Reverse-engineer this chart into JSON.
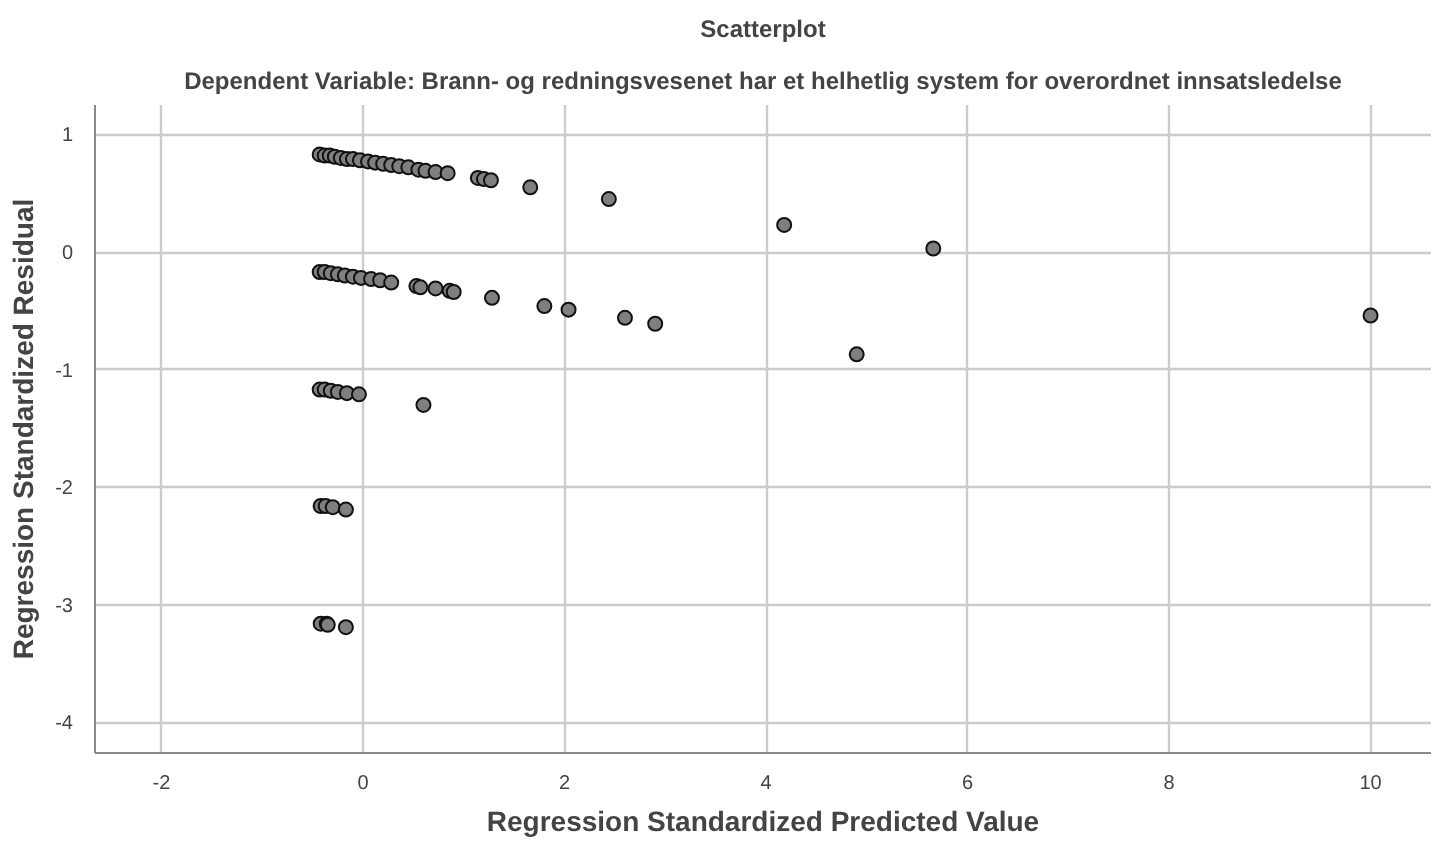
{
  "chart_data": {
    "type": "scatter",
    "title": "Scatterplot",
    "subtitle": "Dependent Variable: Brann- og redningsvesenet har et helhetlig system for overordnet innsatsledelse",
    "xlabel": "Regression Standardized Predicted Value",
    "ylabel": "Regression Standardized Residual",
    "x": [
      -0.43,
      -0.38,
      -0.33,
      -0.28,
      -0.22,
      -0.16,
      -0.1,
      -0.03,
      0.05,
      0.12,
      0.2,
      0.28,
      0.36,
      0.45,
      0.55,
      0.62,
      0.72,
      0.84,
      1.14,
      1.2,
      1.27,
      1.66,
      2.44,
      4.18,
      5.66,
      -0.43,
      -0.38,
      -0.32,
      -0.25,
      -0.18,
      -0.1,
      -0.02,
      0.08,
      0.17,
      0.28,
      0.53,
      0.57,
      0.72,
      0.86,
      0.9,
      1.28,
      1.8,
      2.04,
      2.6,
      2.9,
      4.9,
      10.0,
      -0.43,
      -0.38,
      -0.32,
      -0.25,
      -0.16,
      -0.04,
      0.6,
      -0.42,
      -0.37,
      -0.3,
      -0.17,
      -0.42,
      -0.36,
      -0.35,
      -0.17
    ],
    "series": [
      {
        "color": "#7f7f7f",
        "values": [
          0.83,
          0.82,
          0.82,
          0.81,
          0.8,
          0.79,
          0.79,
          0.78,
          0.77,
          0.76,
          0.75,
          0.74,
          0.73,
          0.72,
          0.7,
          0.69,
          0.68,
          0.67,
          0.63,
          0.62,
          0.61,
          0.55,
          0.45,
          0.23,
          0.03,
          -0.17,
          -0.17,
          -0.18,
          -0.19,
          -0.2,
          -0.21,
          -0.22,
          -0.23,
          -0.24,
          -0.26,
          -0.29,
          -0.3,
          -0.31,
          -0.33,
          -0.34,
          -0.39,
          -0.46,
          -0.49,
          -0.56,
          -0.61,
          -0.87,
          -0.54,
          -1.17,
          -1.17,
          -1.18,
          -1.19,
          -1.2,
          -1.21,
          -1.3,
          -2.16,
          -2.16,
          -2.17,
          -2.19,
          -3.16,
          -3.16,
          -3.17,
          -3.19
        ]
      }
    ],
    "xlim": [
      -2.66,
      10.6
    ],
    "ylim": [
      -4.26,
      1.25
    ],
    "xticks": [
      -2,
      0,
      2,
      4,
      6,
      8,
      10
    ],
    "yticks": [
      -4,
      -3,
      -2,
      -1,
      0,
      1
    ],
    "grid": true,
    "marker": "circle"
  }
}
